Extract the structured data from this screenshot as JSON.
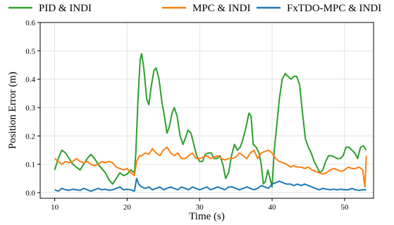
{
  "chart_data": {
    "type": "line",
    "title": "",
    "xlabel": "Time (s)",
    "ylabel": "Position Error (m)",
    "xlim": [
      8,
      54
    ],
    "ylim": [
      -0.02,
      0.6
    ],
    "xticks": [
      10,
      20,
      30,
      40,
      50
    ],
    "yticks": [
      0.0,
      0.1,
      0.2,
      0.3,
      0.4,
      0.5,
      0.6
    ],
    "xtick_labels": [
      "10",
      "20",
      "30",
      "40",
      "50"
    ],
    "ytick_labels": [
      "0.0",
      "0.1",
      "0.2",
      "0.3",
      "0.4",
      "0.5",
      "0.6"
    ],
    "grid": true,
    "legend_position": "top, outside plot",
    "series": [
      {
        "name": "PID & INDI",
        "color": "#2ca02c",
        "points": [
          [
            10,
            0.08
          ],
          [
            10.5,
            0.12
          ],
          [
            11,
            0.15
          ],
          [
            11.5,
            0.14
          ],
          [
            12,
            0.12
          ],
          [
            12.5,
            0.1
          ],
          [
            13,
            0.09
          ],
          [
            13.5,
            0.08
          ],
          [
            14,
            0.1
          ],
          [
            14.5,
            0.12
          ],
          [
            15,
            0.135
          ],
          [
            15.5,
            0.12
          ],
          [
            16,
            0.1
          ],
          [
            16.5,
            0.085
          ],
          [
            17,
            0.07
          ],
          [
            17.5,
            0.045
          ],
          [
            18,
            0.03
          ],
          [
            18.5,
            0.05
          ],
          [
            19,
            0.07
          ],
          [
            19.5,
            0.06
          ],
          [
            20,
            0.065
          ],
          [
            20.5,
            0.08
          ],
          [
            21,
            0.07
          ],
          [
            21.2,
            0.14
          ],
          [
            21.5,
            0.33
          ],
          [
            21.8,
            0.47
          ],
          [
            22,
            0.49
          ],
          [
            22.3,
            0.44
          ],
          [
            22.7,
            0.33
          ],
          [
            23,
            0.31
          ],
          [
            23.3,
            0.37
          ],
          [
            23.7,
            0.43
          ],
          [
            24,
            0.44
          ],
          [
            24.4,
            0.4
          ],
          [
            24.8,
            0.32
          ],
          [
            25.2,
            0.26
          ],
          [
            25.5,
            0.21
          ],
          [
            25.8,
            0.23
          ],
          [
            26.2,
            0.28
          ],
          [
            26.5,
            0.3
          ],
          [
            26.9,
            0.27
          ],
          [
            27.3,
            0.2
          ],
          [
            27.7,
            0.17
          ],
          [
            28,
            0.19
          ],
          [
            28.4,
            0.22
          ],
          [
            28.8,
            0.21
          ],
          [
            29.2,
            0.17
          ],
          [
            29.6,
            0.13
          ],
          [
            30,
            0.11
          ],
          [
            30.4,
            0.11
          ],
          [
            30.8,
            0.135
          ],
          [
            31.2,
            0.14
          ],
          [
            31.6,
            0.14
          ],
          [
            32,
            0.12
          ],
          [
            32.4,
            0.12
          ],
          [
            32.8,
            0.13
          ],
          [
            33.2,
            0.1
          ],
          [
            33.6,
            0.05
          ],
          [
            34,
            0.07
          ],
          [
            34.4,
            0.13
          ],
          [
            34.8,
            0.17
          ],
          [
            35.2,
            0.15
          ],
          [
            35.6,
            0.16
          ],
          [
            36,
            0.19
          ],
          [
            36.4,
            0.23
          ],
          [
            36.8,
            0.28
          ],
          [
            37.1,
            0.27
          ],
          [
            37.4,
            0.17
          ],
          [
            37.8,
            0.16
          ],
          [
            38.2,
            0.14
          ],
          [
            38.5,
            0.1
          ],
          [
            38.8,
            0.03
          ],
          [
            39.1,
            0.04
          ],
          [
            39.4,
            0.08
          ],
          [
            39.7,
            0.05
          ],
          [
            40,
            0.02
          ],
          [
            40.3,
            0.15
          ],
          [
            40.7,
            0.25
          ],
          [
            41,
            0.33
          ],
          [
            41.4,
            0.4
          ],
          [
            41.8,
            0.42
          ],
          [
            42.2,
            0.41
          ],
          [
            42.6,
            0.4
          ],
          [
            43,
            0.41
          ],
          [
            43.4,
            0.41
          ],
          [
            43.8,
            0.38
          ],
          [
            44.2,
            0.28
          ],
          [
            44.6,
            0.19
          ],
          [
            45,
            0.16
          ],
          [
            45.4,
            0.14
          ],
          [
            45.8,
            0.11
          ],
          [
            46.2,
            0.09
          ],
          [
            46.6,
            0.07
          ],
          [
            47,
            0.08
          ],
          [
            47.4,
            0.11
          ],
          [
            47.8,
            0.13
          ],
          [
            48.2,
            0.13
          ],
          [
            48.6,
            0.125
          ],
          [
            49,
            0.12
          ],
          [
            49.4,
            0.12
          ],
          [
            49.8,
            0.13
          ],
          [
            50.2,
            0.16
          ],
          [
            50.6,
            0.16
          ],
          [
            51,
            0.15
          ],
          [
            51.4,
            0.14
          ],
          [
            51.8,
            0.12
          ],
          [
            52.2,
            0.16
          ],
          [
            52.6,
            0.165
          ],
          [
            53,
            0.15
          ]
        ]
      },
      {
        "name": "MPC & INDI",
        "color": "#ff7f0e",
        "points": [
          [
            10,
            0.12
          ],
          [
            10.5,
            0.11
          ],
          [
            11,
            0.1
          ],
          [
            11.5,
            0.11
          ],
          [
            12,
            0.105
          ],
          [
            12.5,
            0.11
          ],
          [
            13,
            0.12
          ],
          [
            13.5,
            0.11
          ],
          [
            14,
            0.105
          ],
          [
            14.5,
            0.11
          ],
          [
            15,
            0.1
          ],
          [
            15.5,
            0.095
          ],
          [
            16,
            0.1
          ],
          [
            16.5,
            0.11
          ],
          [
            17,
            0.105
          ],
          [
            17.5,
            0.11
          ],
          [
            18,
            0.105
          ],
          [
            18.5,
            0.09
          ],
          [
            19,
            0.085
          ],
          [
            19.5,
            0.08
          ],
          [
            20,
            0.085
          ],
          [
            20.5,
            0.07
          ],
          [
            21,
            0.06
          ],
          [
            21.3,
            0.11
          ],
          [
            21.7,
            0.13
          ],
          [
            22,
            0.13
          ],
          [
            22.5,
            0.14
          ],
          [
            23,
            0.135
          ],
          [
            23.5,
            0.155
          ],
          [
            24,
            0.14
          ],
          [
            24.5,
            0.13
          ],
          [
            25,
            0.15
          ],
          [
            25.5,
            0.16
          ],
          [
            26,
            0.14
          ],
          [
            26.5,
            0.13
          ],
          [
            27,
            0.14
          ],
          [
            27.5,
            0.12
          ],
          [
            28,
            0.12
          ],
          [
            28.5,
            0.13
          ],
          [
            29,
            0.14
          ],
          [
            29.5,
            0.12
          ],
          [
            30,
            0.12
          ],
          [
            30.5,
            0.125
          ],
          [
            31,
            0.13
          ],
          [
            31.5,
            0.12
          ],
          [
            32,
            0.125
          ],
          [
            32.5,
            0.13
          ],
          [
            33,
            0.12
          ],
          [
            33.5,
            0.115
          ],
          [
            34,
            0.12
          ],
          [
            34.5,
            0.12
          ],
          [
            35,
            0.125
          ],
          [
            35.5,
            0.14
          ],
          [
            36,
            0.13
          ],
          [
            36.5,
            0.12
          ],
          [
            37,
            0.14
          ],
          [
            37.5,
            0.15
          ],
          [
            38,
            0.12
          ],
          [
            38.5,
            0.14
          ],
          [
            39,
            0.145
          ],
          [
            39.5,
            0.15
          ],
          [
            40,
            0.14
          ],
          [
            40.5,
            0.12
          ],
          [
            41,
            0.11
          ],
          [
            41.5,
            0.105
          ],
          [
            42,
            0.1
          ],
          [
            42.5,
            0.09
          ],
          [
            43,
            0.095
          ],
          [
            43.5,
            0.09
          ],
          [
            44,
            0.09
          ],
          [
            44.5,
            0.085
          ],
          [
            45,
            0.09
          ],
          [
            45.5,
            0.08
          ],
          [
            46,
            0.075
          ],
          [
            46.5,
            0.07
          ],
          [
            47,
            0.065
          ],
          [
            47.5,
            0.07
          ],
          [
            48,
            0.08
          ],
          [
            48.5,
            0.085
          ],
          [
            49,
            0.08
          ],
          [
            49.5,
            0.075
          ],
          [
            50,
            0.08
          ],
          [
            50.5,
            0.09
          ],
          [
            51,
            0.085
          ],
          [
            51.5,
            0.085
          ],
          [
            52,
            0.09
          ],
          [
            52.5,
            0.08
          ],
          [
            52.8,
            0.02
          ],
          [
            53,
            0.13
          ]
        ]
      },
      {
        "name": "FxTDO-MPC & INDI",
        "color": "#1f77b4",
        "points": [
          [
            10,
            0.01
          ],
          [
            10.5,
            0.005
          ],
          [
            11,
            0.015
          ],
          [
            11.5,
            0.01
          ],
          [
            12,
            0.008
          ],
          [
            12.5,
            0.012
          ],
          [
            13,
            0.01
          ],
          [
            13.5,
            0.008
          ],
          [
            14,
            0.015
          ],
          [
            14.5,
            0.01
          ],
          [
            15,
            0.005
          ],
          [
            15.5,
            0.01
          ],
          [
            16,
            0.015
          ],
          [
            16.5,
            0.01
          ],
          [
            17,
            0.012
          ],
          [
            17.5,
            0.008
          ],
          [
            18,
            0.01
          ],
          [
            18.5,
            0.015
          ],
          [
            19,
            0.02
          ],
          [
            19.5,
            0.01
          ],
          [
            20,
            0.012
          ],
          [
            20.5,
            0.01
          ],
          [
            21,
            0.005
          ],
          [
            21.3,
            0.05
          ],
          [
            21.6,
            0.03
          ],
          [
            22,
            0.02
          ],
          [
            22.5,
            0.015
          ],
          [
            23,
            0.02
          ],
          [
            23.5,
            0.01
          ],
          [
            24,
            0.015
          ],
          [
            24.5,
            0.02
          ],
          [
            25,
            0.01
          ],
          [
            25.5,
            0.015
          ],
          [
            26,
            0.02
          ],
          [
            26.5,
            0.015
          ],
          [
            27,
            0.01
          ],
          [
            27.5,
            0.02
          ],
          [
            28,
            0.015
          ],
          [
            28.5,
            0.01
          ],
          [
            29,
            0.02
          ],
          [
            29.5,
            0.015
          ],
          [
            30,
            0.01
          ],
          [
            30.5,
            0.015
          ],
          [
            31,
            0.02
          ],
          [
            31.5,
            0.01
          ],
          [
            32,
            0.015
          ],
          [
            32.5,
            0.02
          ],
          [
            33,
            0.015
          ],
          [
            33.5,
            0.01
          ],
          [
            34,
            0.02
          ],
          [
            34.5,
            0.02
          ],
          [
            35,
            0.015
          ],
          [
            35.5,
            0.01
          ],
          [
            36,
            0.015
          ],
          [
            36.5,
            0.02
          ],
          [
            37,
            0.015
          ],
          [
            37.5,
            0.01
          ],
          [
            38,
            0.015
          ],
          [
            38.5,
            0.025
          ],
          [
            39,
            0.02
          ],
          [
            39.5,
            0.015
          ],
          [
            40,
            0.03
          ],
          [
            40.5,
            0.035
          ],
          [
            41,
            0.04
          ],
          [
            41.5,
            0.035
          ],
          [
            42,
            0.03
          ],
          [
            42.5,
            0.03
          ],
          [
            43,
            0.025
          ],
          [
            43.5,
            0.03
          ],
          [
            44,
            0.025
          ],
          [
            44.5,
            0.03
          ],
          [
            45,
            0.025
          ],
          [
            45.5,
            0.02
          ],
          [
            46,
            0.015
          ],
          [
            46.5,
            0.01
          ],
          [
            47,
            0.015
          ],
          [
            47.5,
            0.012
          ],
          [
            48,
            0.01
          ],
          [
            48.5,
            0.012
          ],
          [
            49,
            0.01
          ],
          [
            49.5,
            0.012
          ],
          [
            50,
            0.01
          ],
          [
            50.5,
            0.01
          ],
          [
            51,
            0.015
          ],
          [
            51.5,
            0.01
          ],
          [
            52,
            0.008
          ],
          [
            52.5,
            0.01
          ],
          [
            53,
            0.01
          ]
        ]
      }
    ]
  }
}
